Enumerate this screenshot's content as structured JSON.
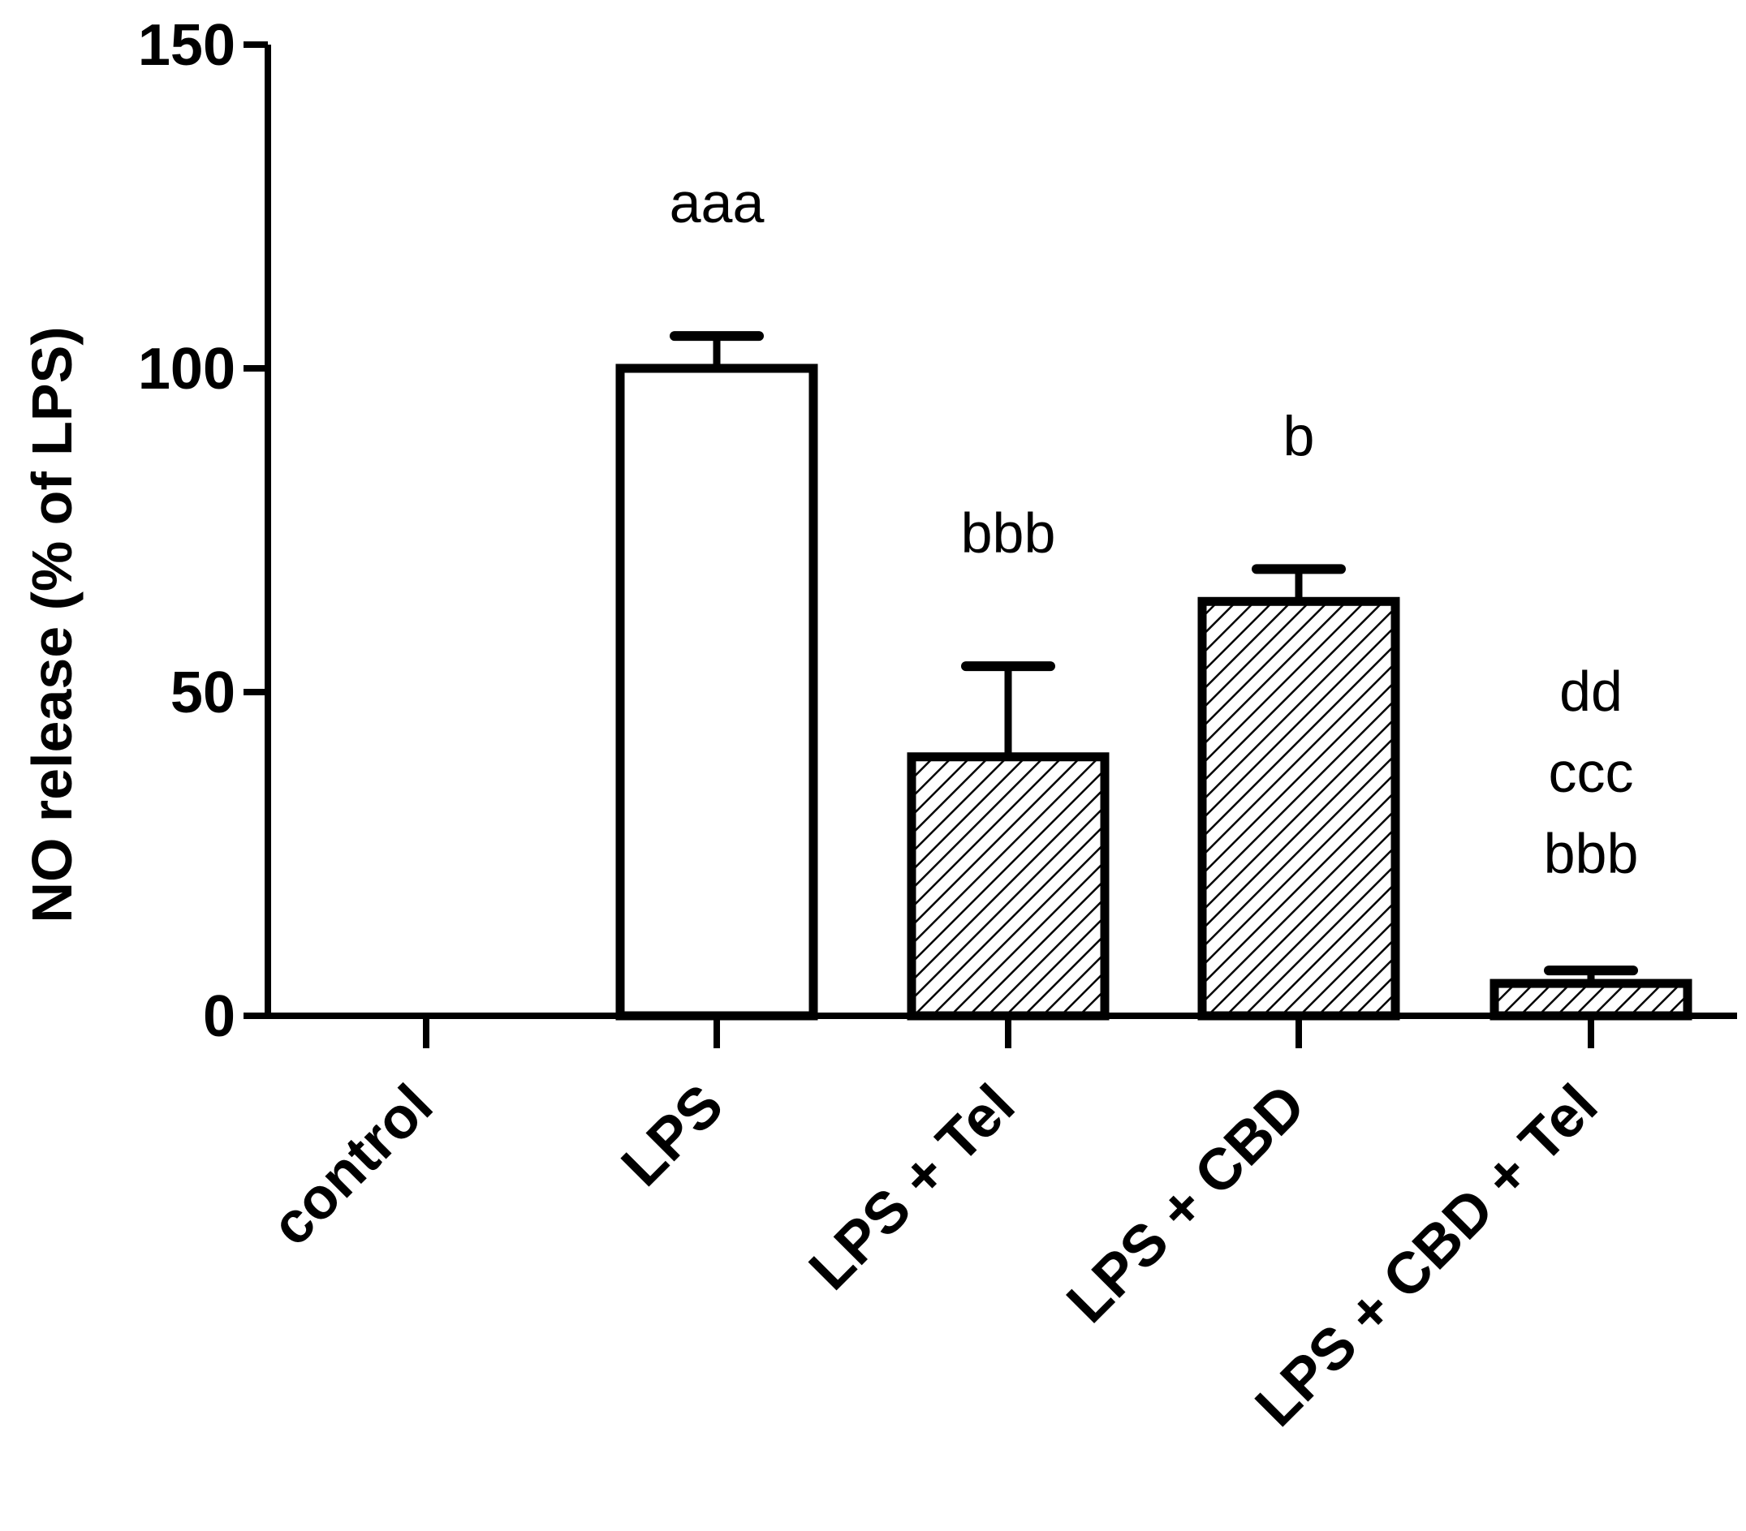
{
  "chart_data": {
    "type": "bar",
    "title": "",
    "xlabel": "",
    "ylabel": "NO release (% of LPS)",
    "ylim": [
      0,
      150
    ],
    "yticks": [
      0,
      50,
      100,
      150
    ],
    "grid": false,
    "categories": [
      "control",
      "LPS",
      "LPS + Tel",
      "LPS + CBD",
      "LPS + CBD + Tel"
    ],
    "values": [
      0,
      100,
      40,
      64,
      5
    ],
    "errors": [
      0,
      5,
      14,
      5,
      2
    ],
    "fills": [
      "none",
      "white",
      "hatched",
      "hatched",
      "hatched"
    ],
    "annotations": [
      [],
      [
        "aaa"
      ],
      [
        "bbb"
      ],
      [
        "b"
      ],
      [
        "dd",
        "ccc",
        "bbb"
      ]
    ]
  }
}
